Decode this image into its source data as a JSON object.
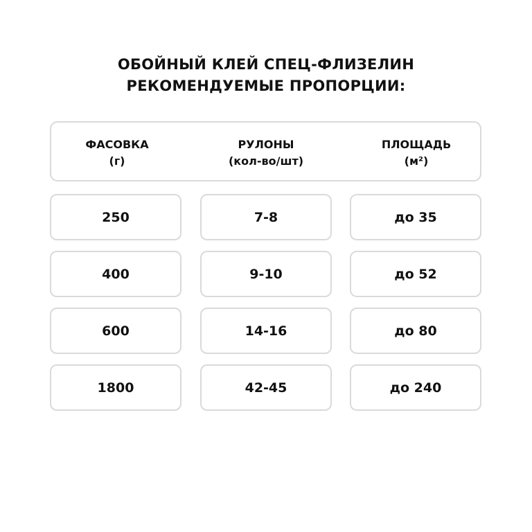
{
  "title": {
    "line1": "ОБОЙНЫЙ КЛЕЙ СПЕЦ-ФЛИЗЕЛИН",
    "line2": "РЕКОМЕНДУЕМЫЕ ПРОПОРЦИИ:"
  },
  "header": [
    {
      "label": "ФАСОВКА",
      "unit": "(г)"
    },
    {
      "label": "РУЛОНЫ",
      "unit": "(кол-во/шт)"
    },
    {
      "label": "ПЛОЩАДЬ",
      "unit": "(м²)"
    }
  ],
  "rows": [
    [
      "250",
      "7-8",
      "до 35"
    ],
    [
      "400",
      "9-10",
      "до 52"
    ],
    [
      "600",
      "14-16",
      "до 80"
    ],
    [
      "1800",
      "42-45",
      "до 240"
    ]
  ],
  "colors": {
    "border": "#dadada",
    "text": "#111111"
  }
}
